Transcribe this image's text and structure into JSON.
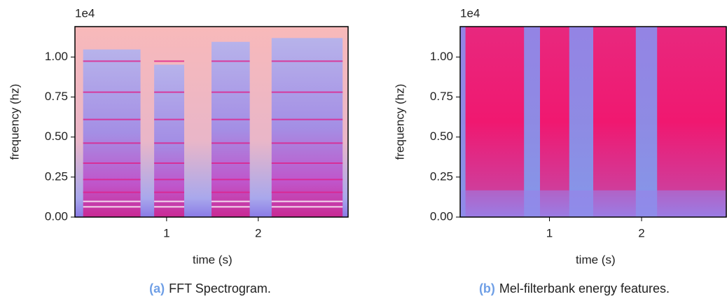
{
  "chart_data": [
    {
      "type": "spectrogram",
      "offset_label": "1e4",
      "xlabel": "time (s)",
      "ylabel": "frequency (hz)",
      "xlim": [
        0,
        2.98
      ],
      "ylim": [
        0,
        1.19
      ],
      "xticks": [
        1,
        2
      ],
      "yticks": [
        {
          "value": 0,
          "label": "0.00"
        },
        {
          "value": 0.25,
          "label": "0.25"
        },
        {
          "value": 0.5,
          "label": "0.50"
        },
        {
          "value": 0.75,
          "label": "0.75"
        },
        {
          "value": 1,
          "label": "1.00"
        }
      ],
      "caption_label": "(a)",
      "caption": "FFT Spectrogram."
    },
    {
      "type": "melspectrogram",
      "offset_label": "1e4",
      "xlabel": "time (s)",
      "ylabel": "frequency (hz)",
      "xlim": [
        0.03,
        2.92
      ],
      "ylim": [
        0,
        1.19
      ],
      "xticks": [
        1,
        2
      ],
      "yticks": [
        {
          "value": 0,
          "label": "0.00"
        },
        {
          "value": 0.25,
          "label": "0.25"
        },
        {
          "value": 0.5,
          "label": "0.50"
        },
        {
          "value": 0.75,
          "label": "0.75"
        },
        {
          "value": 1,
          "label": "1.00"
        }
      ],
      "caption_label": "(b)",
      "caption": "Mel-filterbank energy features."
    }
  ]
}
